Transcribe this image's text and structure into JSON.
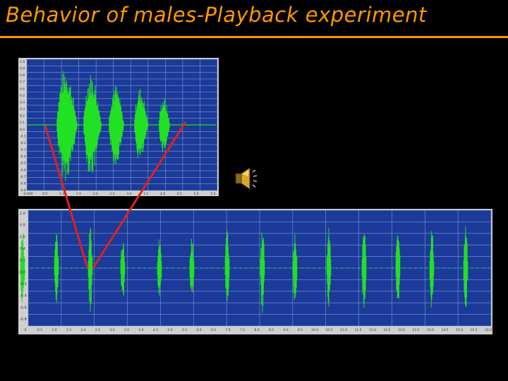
{
  "slide": {
    "title": "Behavior of males-Playback experiment"
  },
  "colors": {
    "background": "#000000",
    "title": "#FF9900",
    "plot_bg": "#1B3A99",
    "grid": "#7F9AD9",
    "waveform": "#22E022",
    "pointer_lines": "#E02020"
  },
  "icons": {
    "speaker": "speaker-sound-icon"
  },
  "top_panel": {
    "y_labels": [
      "1.0",
      "0.9",
      "0.8",
      "0.7",
      "0.6",
      "0.5",
      "0.4",
      "0.3",
      "0.2",
      "0.1",
      "0.0",
      "-0.1",
      "-0.2",
      "-0.3",
      "-0.4",
      "-0.5",
      "-0.6",
      "-0.7",
      "-0.8",
      "-0.9"
    ],
    "x_labels": [
      "0.000",
      "0.5",
      "1.0",
      "1.5",
      "2.0",
      "2.5",
      "3.0",
      "3.5",
      "4.0",
      "4.5",
      "5.0",
      "5.5"
    ]
  },
  "bottom_panel": {
    "y_labels": [
      "1.0",
      "0.8",
      "0.6",
      "0.4",
      "0.2",
      "0.0",
      "-0.2",
      "-0.4",
      "-0.6",
      "-0.8"
    ],
    "x_labels": [
      "0",
      "0.5",
      "1.0",
      "1.5",
      "2.0",
      "2.5",
      "3.0",
      "3.5",
      "4.0",
      "4.5",
      "5.0",
      "5.5",
      "6.0",
      "6.5",
      "7.0",
      "7.5",
      "8.0",
      "8.5",
      "9.0",
      "9.5",
      "10.0",
      "10.5",
      "11.0",
      "11.5",
      "12.0",
      "12.5",
      "13.0",
      "13.5",
      "14.0",
      "14.5",
      "15.0",
      "15.5",
      "16.0"
    ]
  }
}
